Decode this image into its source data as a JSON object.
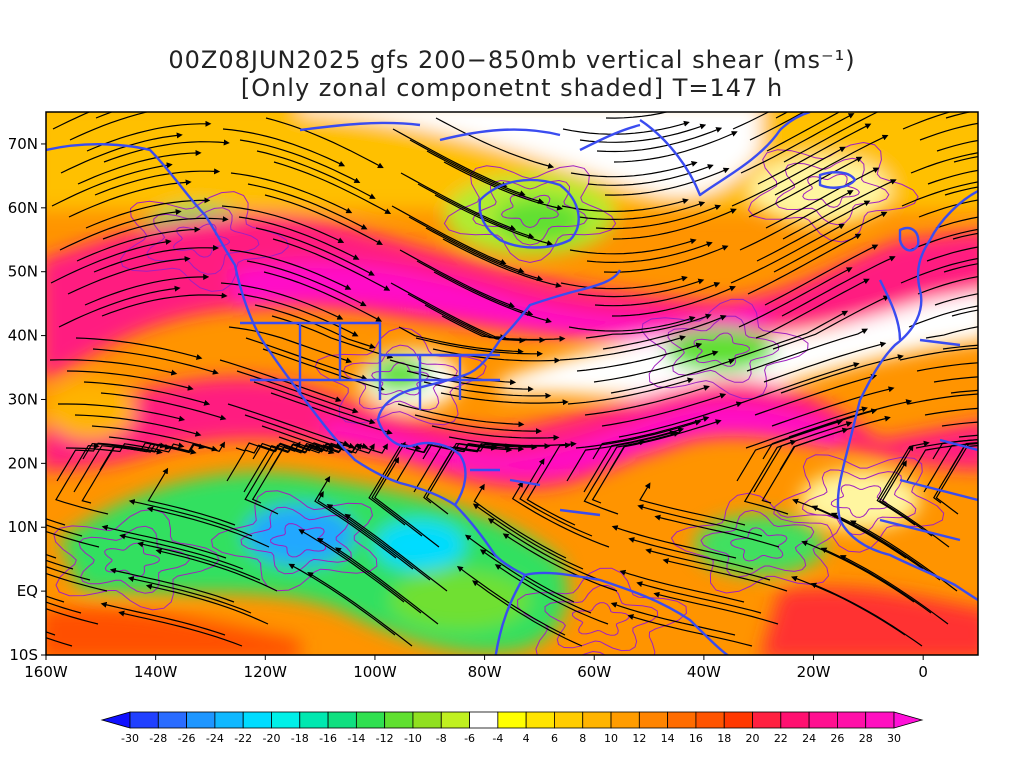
{
  "title": {
    "line1": "00Z08JUN2025 gfs 200−850mb vertical shear (ms⁻¹)",
    "line2": "[Only zonal componetnt shaded] T=147 h"
  },
  "map": {
    "lon_range": [
      -160,
      10
    ],
    "lat_range": [
      -10,
      75
    ],
    "lon_ticks": [
      {
        "value": -160,
        "label": "160W"
      },
      {
        "value": -140,
        "label": "140W"
      },
      {
        "value": -120,
        "label": "120W"
      },
      {
        "value": -100,
        "label": "100W"
      },
      {
        "value": -80,
        "label": "80W"
      },
      {
        "value": -60,
        "label": "60W"
      },
      {
        "value": -40,
        "label": "40W"
      },
      {
        "value": -20,
        "label": "20W"
      },
      {
        "value": 0,
        "label": "0"
      }
    ],
    "lat_ticks": [
      {
        "value": -10,
        "label": "10S"
      },
      {
        "value": 0,
        "label": "EQ"
      },
      {
        "value": 10,
        "label": "10N"
      },
      {
        "value": 20,
        "label": "20N"
      },
      {
        "value": 30,
        "label": "30N"
      },
      {
        "value": 40,
        "label": "40N"
      },
      {
        "value": 50,
        "label": "50N"
      },
      {
        "value": 60,
        "label": "60N"
      },
      {
        "value": 70,
        "label": "70N"
      }
    ],
    "coastline_color": "#3a4cf0",
    "contour_color": "#a020c0",
    "streamline_color": "#000000"
  },
  "colorbar": {
    "levels": [
      "-30",
      "-28",
      "-26",
      "-24",
      "-22",
      "-20",
      "-18",
      "-16",
      "-14",
      "-12",
      "-10",
      "-8",
      "-6",
      "-4",
      "4",
      "6",
      "8",
      "10",
      "12",
      "14",
      "16",
      "18",
      "20",
      "22",
      "24",
      "26",
      "28",
      "30"
    ],
    "colors": [
      "#1010ff",
      "#2040ff",
      "#2a6cff",
      "#1e96ff",
      "#10b8ff",
      "#00dcff",
      "#00f0e8",
      "#00e8b0",
      "#10e080",
      "#30e050",
      "#60e030",
      "#90e020",
      "#c0f020",
      "#ffffff",
      "#ffff00",
      "#ffe400",
      "#ffcc00",
      "#ffb400",
      "#ff9c00",
      "#ff8400",
      "#ff6c00",
      "#ff5400",
      "#ff3800",
      "#ff2040",
      "#ff1070",
      "#ff1090",
      "#ff10a8",
      "#ff10c0",
      "#ff10d8"
    ]
  }
}
